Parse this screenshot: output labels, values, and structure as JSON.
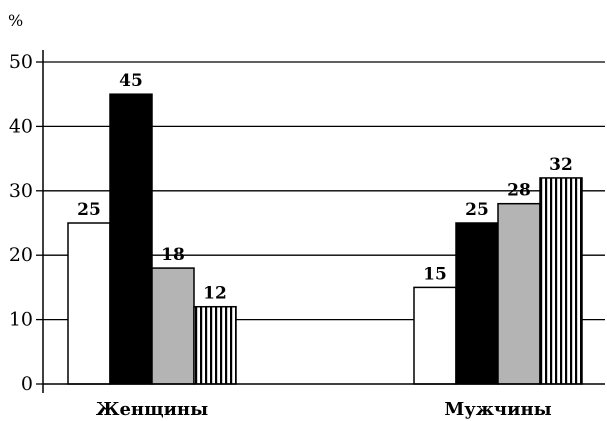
{
  "chart_data": {
    "type": "bar",
    "ylabel": "%",
    "ylim": [
      0,
      50
    ],
    "yticks": [
      0,
      10,
      20,
      30,
      40,
      50
    ],
    "grid": true,
    "categories": [
      "Женщины",
      "Мужчины"
    ],
    "series": [
      {
        "values": [
          25,
          15
        ],
        "fill": "white"
      },
      {
        "values": [
          45,
          25
        ],
        "fill": "black"
      },
      {
        "values": [
          18,
          28
        ],
        "fill": "gray"
      },
      {
        "values": [
          12,
          32
        ],
        "fill": "vertical-stripes"
      }
    ],
    "colors": {
      "white": "#ffffff",
      "black": "#000000",
      "gray": "#b4b4b4",
      "stroke": "#000000"
    }
  }
}
